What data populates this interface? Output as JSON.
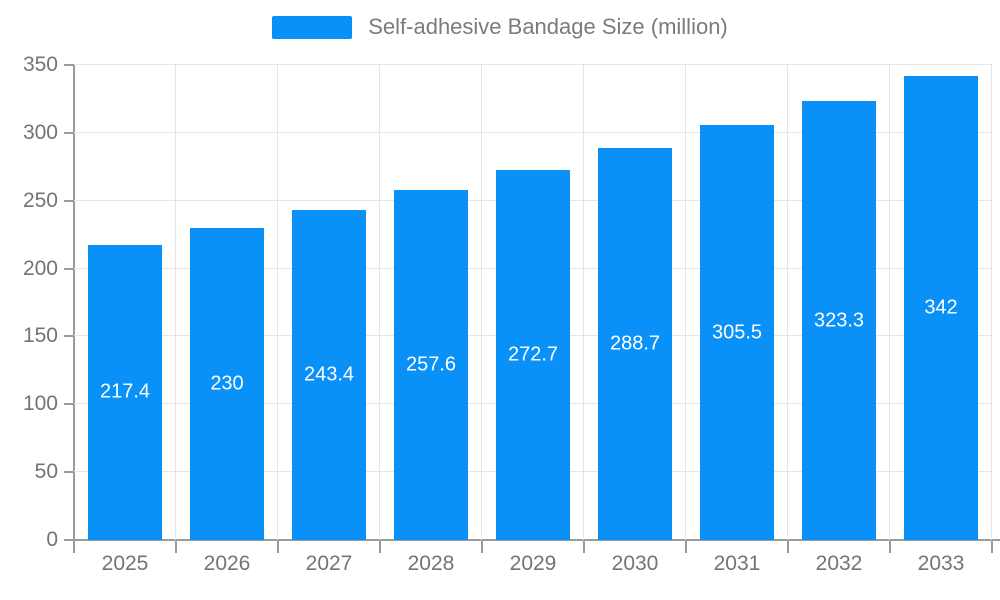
{
  "legend": {
    "label": "Self-adhesive Bandage Size (million)"
  },
  "colors": {
    "bar": "#0a91f8",
    "grid": "#e6e6e6",
    "axis": "#9b9b9b",
    "axis_text": "#747474",
    "legend_text": "#7b7b7b",
    "bar_label_text": "#ffffff"
  },
  "chart_data": {
    "type": "bar",
    "title": "Self-adhesive Bandage Size (million)",
    "categories": [
      "2025",
      "2026",
      "2027",
      "2028",
      "2029",
      "2030",
      "2031",
      "2032",
      "2033"
    ],
    "values": [
      217.4,
      230,
      243.4,
      257.6,
      272.7,
      288.7,
      305.5,
      323.3,
      342
    ],
    "value_labels": [
      "217.4",
      "230",
      "243.4",
      "257.6",
      "272.7",
      "288.7",
      "305.5",
      "323.3",
      "342"
    ],
    "series": [
      {
        "name": "Self-adhesive Bandage Size (million)",
        "values": [
          217.4,
          230,
          243.4,
          257.6,
          272.7,
          288.7,
          305.5,
          323.3,
          342
        ]
      }
    ],
    "xlabel": "",
    "ylabel": "",
    "ylim": [
      0,
      350
    ],
    "yticks": [
      0,
      50,
      100,
      150,
      200,
      250,
      300,
      350
    ],
    "grid": true,
    "grid_vertical": true,
    "legend_position": "top-center",
    "bar_label_position": "inside-center"
  }
}
